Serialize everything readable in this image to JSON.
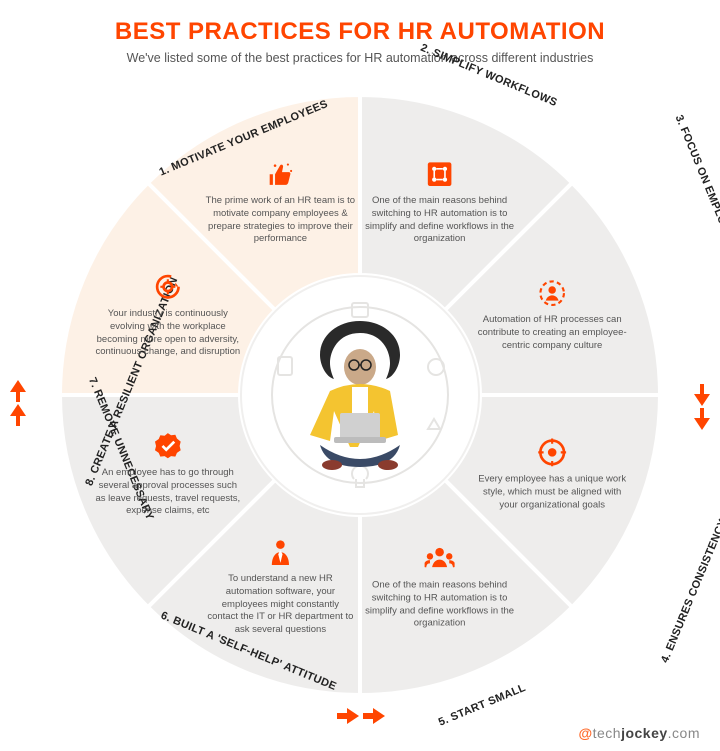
{
  "title": "BEST PRACTICES FOR HR AUTOMATION",
  "subtitle": "We've listed some of the best practices for HR automation across different industries",
  "wheel": {
    "outer_radius": 300,
    "inner_radius": 120,
    "label_radius": 310,
    "content_radius": 208,
    "background_color": "#ffffff",
    "slice_stroke": "#ffffff",
    "slice_stroke_width": 4,
    "slices": [
      {
        "number": "1.",
        "label": "MOTIVATE YOUR EMPLOYEES",
        "fill": "#fdf1e6",
        "icon": "thumbs-up",
        "text": "The prime work of an HR team is to motivate company employees & prepare strategies to improve their performance"
      },
      {
        "number": "2.",
        "label": "SIMPLIFY WORKFLOWS",
        "fill": "#eeedec",
        "icon": "workflow",
        "text": "One of the main reasons behind switching to HR automation is to simplify and define workflows in the organization"
      },
      {
        "number": "3.",
        "label": "FOCUS ON EMPLOYEE NEED",
        "fill": "#eeedec",
        "icon": "employee-ring",
        "text": "Automation of HR processes can contribute to creating an employee-centric company culture"
      },
      {
        "number": "4.",
        "label": "ENSURES CONSISTENCY",
        "fill": "#eeedec",
        "icon": "target",
        "text": "Every employee has a unique work style, which must be aligned with your organizational goals"
      },
      {
        "number": "5.",
        "label": "START SMALL",
        "fill": "#eeedec",
        "icon": "team",
        "text": "One of the main reasons behind switching to HR automation is to simplify and define workflows in the organization"
      },
      {
        "number": "6.",
        "label": "BUILT A 'SELF-HELP' ATTITUDE",
        "fill": "#eeedec",
        "icon": "businessman",
        "text": "To understand a new HR automation software, your employees might constantly contact the IT or HR department to ask several questions"
      },
      {
        "number": "7.",
        "label": "REMOVE UNNECESSARY",
        "fill": "#eeedec",
        "icon": "check-badge",
        "text": "An employee has to go through several approval processes such as leave requests, travel requests, expense claims, etc"
      },
      {
        "number": "8.",
        "label": "CREATE A RESILIENT ORGANIZATION",
        "fill": "#fdf1e6",
        "icon": "gear-cycle",
        "text": "Your industry is continuously evolving with the workplace becoming more open to adversity, continuous change, and disruption"
      }
    ]
  },
  "colors": {
    "accent": "#ff4500",
    "accent_light": "#fdf1e6",
    "slice_default": "#eeedec",
    "text": "#555555",
    "title": "#ff4500"
  },
  "footer": {
    "at": "@",
    "part1": "tech",
    "part2": "jockey",
    "part3": ".com"
  }
}
